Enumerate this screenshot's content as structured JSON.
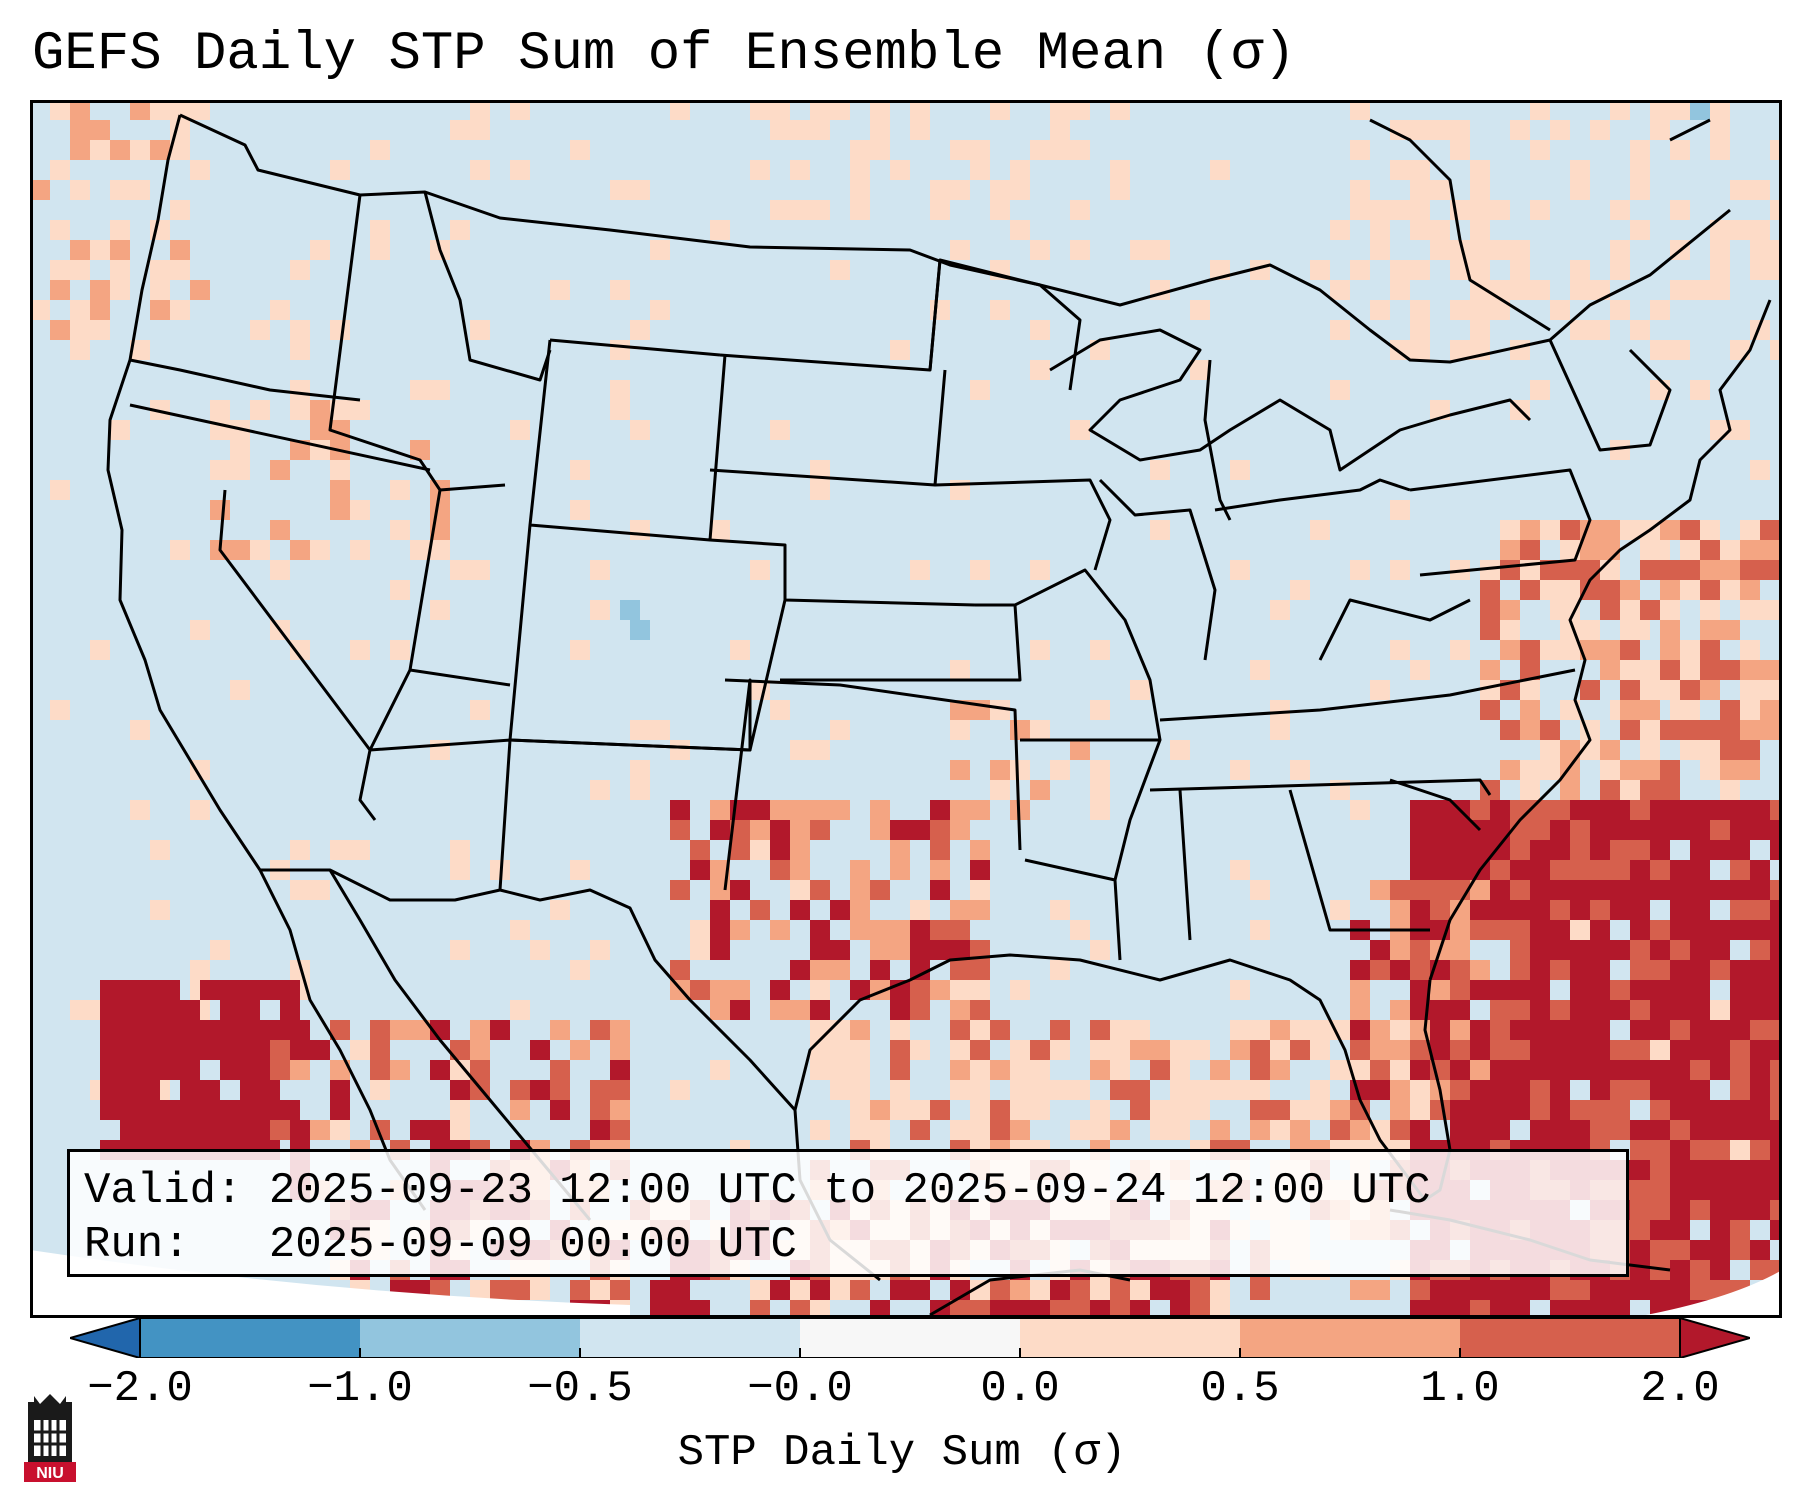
{
  "title": "GEFS Daily STP Sum of Ensemble Mean (σ)",
  "valid_label": "Valid:",
  "valid_value": "2025-09-23 12:00 UTC to 2025-09-24 12:00 UTC",
  "run_label": "Run:",
  "run_value": "2025-09-09 00:00 UTC",
  "colorbar": {
    "label": "STP Daily Sum (σ)",
    "ticks": [
      "−2.0",
      "−1.0",
      "−0.5",
      "−0.0",
      "0.0",
      "0.5",
      "1.0",
      "2.0"
    ],
    "bins": [
      {
        "range": "<-2.0",
        "color": "#2166ac"
      },
      {
        "range": "-2.0 to -1.0",
        "color": "#4393c3"
      },
      {
        "range": "-1.0 to -0.5",
        "color": "#92c5de"
      },
      {
        "range": "-0.5 to -0.0",
        "color": "#d1e5f0"
      },
      {
        "range": "-0.0 to 0.0",
        "color": "#f7f7f7"
      },
      {
        "range": "0.0 to 0.5",
        "color": "#fddbc7"
      },
      {
        "range": "0.5 to 1.0",
        "color": "#f4a582"
      },
      {
        "range": "1.0 to 2.0",
        "color": "#d6604d"
      },
      {
        "range": ">2.0",
        "color": "#b2182b"
      }
    ]
  },
  "colors": {
    "background": "#d1e5f0",
    "light_pos": "#fddbc7",
    "mid_pos": "#f4a582",
    "high_pos": "#d6604d",
    "very_high": "#b2182b",
    "neg_light": "#92c5de",
    "boundary": "#000000"
  },
  "logo_text": "NIU"
}
